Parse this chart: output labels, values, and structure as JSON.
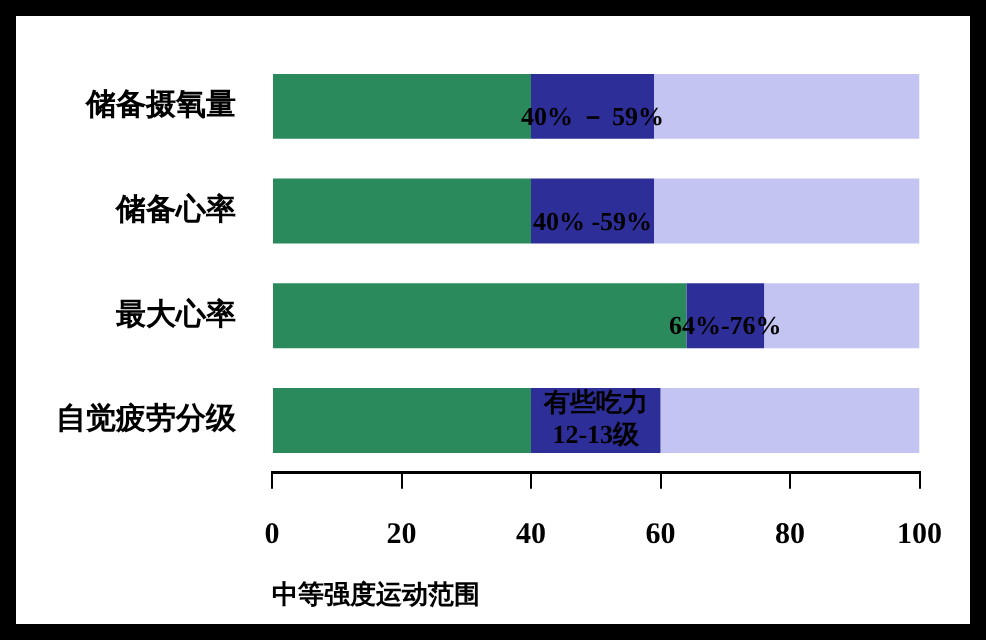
{
  "chart_data": {
    "type": "bar",
    "orientation": "horizontal",
    "stacked": true,
    "categories": [
      "储备摄氧量",
      "储备心率",
      "最大心率",
      "自觉疲劳分级"
    ],
    "series": [
      {
        "color": "#2b8a5c",
        "values": [
          40,
          40,
          64,
          40
        ]
      },
      {
        "color": "#2e2e98",
        "values": [
          19,
          19,
          12,
          20
        ]
      },
      {
        "color": "#c4c4f2",
        "values": [
          41,
          41,
          24,
          40
        ]
      }
    ],
    "xlim": [
      0,
      100
    ],
    "xticks": [
      0,
      20,
      40,
      60,
      80,
      100
    ],
    "grid": false,
    "legend": false,
    "xlabel": "中等强度运动范围",
    "annotations": [
      "40% － 59%",
      "40% -59%",
      "64%-76%",
      "有些吃力\n12-13级"
    ]
  }
}
